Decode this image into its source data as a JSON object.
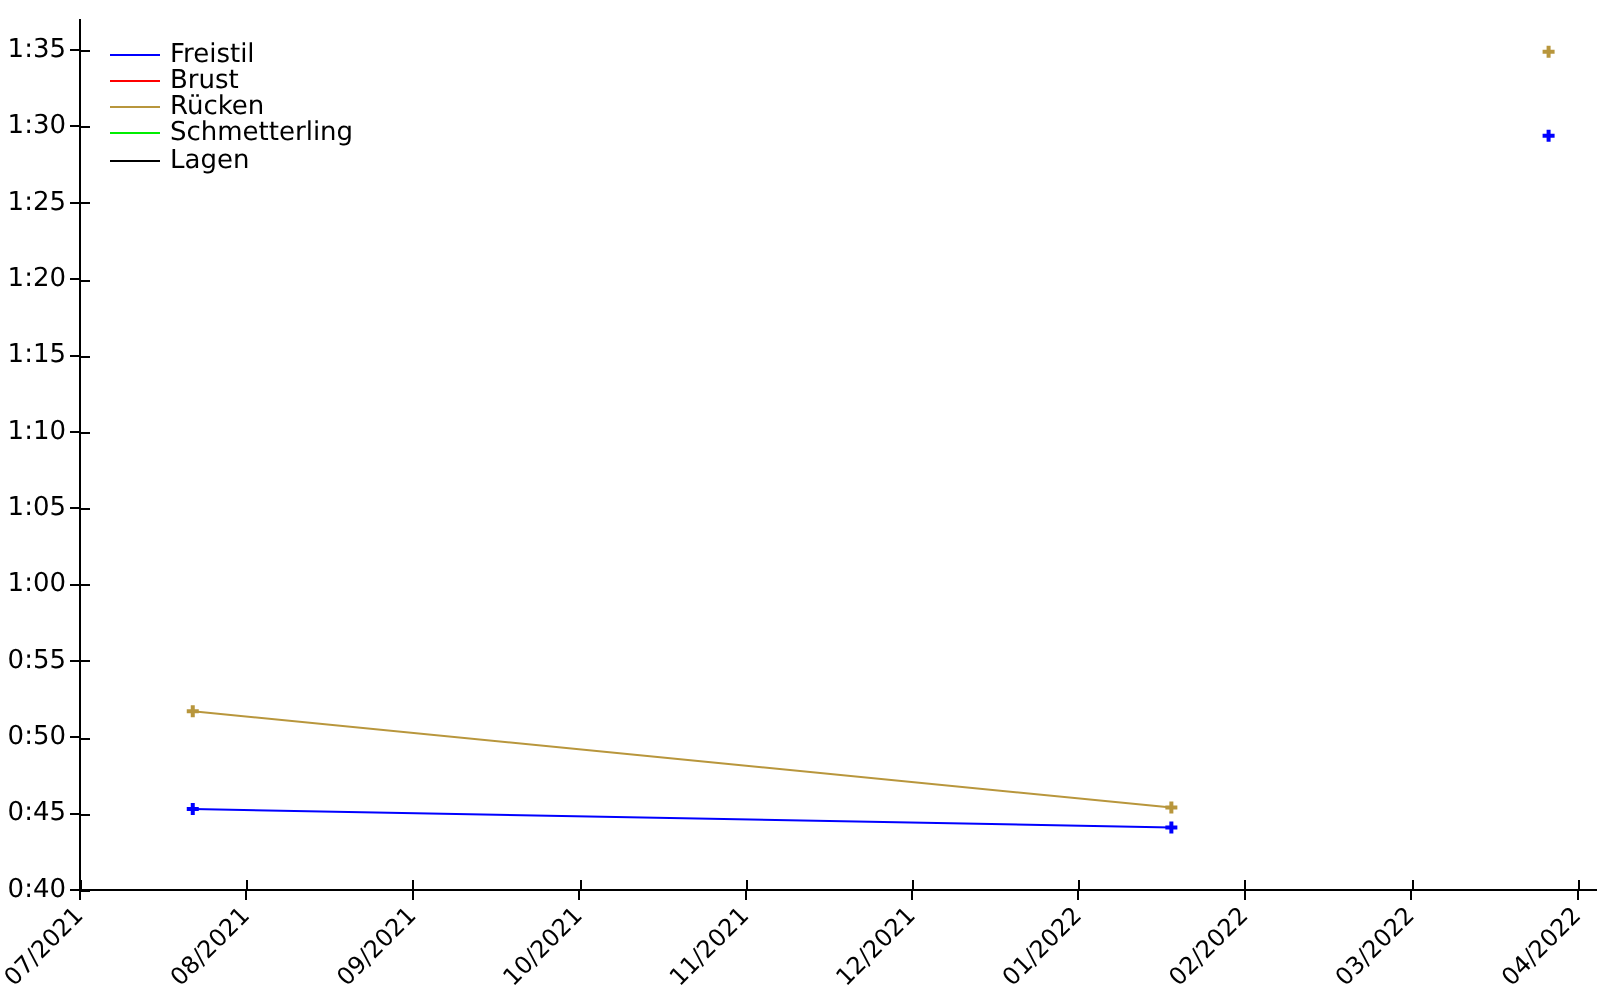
{
  "chart_data": {
    "type": "line",
    "series": [
      {
        "name": "Freistil",
        "color": "#0000ff",
        "x": [
          "2021-07-24",
          "2022-01-19"
        ],
        "values": [
          45.3,
          44.1
        ]
      },
      {
        "name": "Brust",
        "color": "#ff0000"
      },
      {
        "name": "Rücken",
        "color": "#b8963c",
        "x": [
          "2021-07-24",
          "2022-01-19"
        ],
        "values": [
          51.7,
          45.4
        ]
      },
      {
        "name": "Schmetterling",
        "color": "#00ee00"
      },
      {
        "name": "Lagen",
        "color": "#000000"
      },
      {
        "color": "#0000ff",
        "x": [
          "2022-03-29"
        ],
        "values": [
          89.4
        ]
      },
      {
        "color": "#b8963c",
        "x": [
          "2022-03-29"
        ],
        "values": [
          94.9
        ]
      }
    ],
    "xlim": [
      "2021-07-03T09:00",
      "2022-04-06T17:00"
    ],
    "xticks": [
      {
        "value": "2021-07-03T09:00",
        "label": "07/2021"
      },
      {
        "value": "2021-08-02T19:30",
        "label": "08/2021"
      },
      {
        "value": "2021-09-02T06:00",
        "label": "09/2021"
      },
      {
        "value": "2021-10-02T16:30",
        "label": "10/2021"
      },
      {
        "value": "2021-11-02T03:00",
        "label": "11/2021"
      },
      {
        "value": "2021-12-02T13:30",
        "label": "12/2021"
      },
      {
        "value": "2022-01-02T00:00",
        "label": "01/2022"
      },
      {
        "value": "2022-02-01T10:30",
        "label": "02/2022"
      },
      {
        "value": "2022-03-03T21:00",
        "label": "03/2022"
      },
      {
        "value": "2022-04-03T07:30",
        "label": "04/2022"
      }
    ],
    "ylim": [
      40,
      97
    ],
    "yticks": [
      {
        "value": 40,
        "label": "0:40"
      },
      {
        "value": 45,
        "label": "0:45"
      },
      {
        "value": 50,
        "label": "0:50"
      },
      {
        "value": 55,
        "label": "0:55"
      },
      {
        "value": 60,
        "label": "1:00"
      },
      {
        "value": 65,
        "label": "1:05"
      },
      {
        "value": 70,
        "label": "1:10"
      },
      {
        "value": 75,
        "label": "1:15"
      },
      {
        "value": 80,
        "label": "1:20"
      },
      {
        "value": 85,
        "label": "1:25"
      },
      {
        "value": 90,
        "label": "1:30"
      },
      {
        "value": 95,
        "label": "1:35"
      }
    ],
    "legend": "top left",
    "marker": "cross"
  }
}
